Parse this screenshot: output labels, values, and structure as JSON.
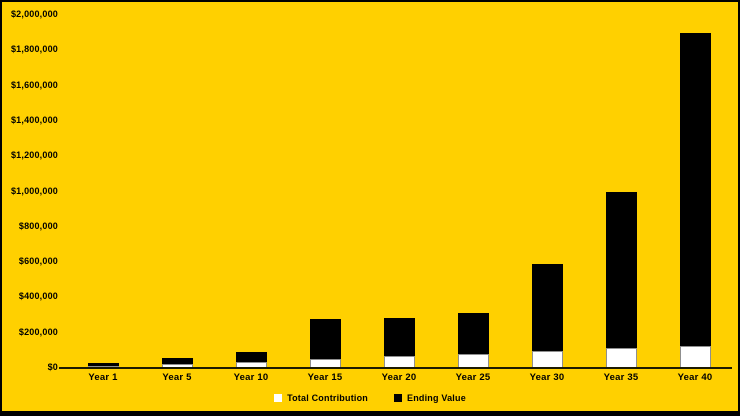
{
  "chart_data": {
    "type": "bar",
    "stacked": true,
    "title": "",
    "xlabel": "",
    "ylabel": "",
    "categories": [
      "Year 1",
      "Year 5",
      "Year 10",
      "Year 15",
      "Year 20",
      "Year 25",
      "Year 30",
      "Year 35",
      "Year 40"
    ],
    "series": [
      {
        "name": "Total Contribution",
        "color": "#FFFFFF",
        "values": [
          3000,
          15000,
          30000,
          45000,
          60000,
          75000,
          90000,
          105000,
          120000
        ]
      },
      {
        "name": "Ending Value",
        "color": "#000000",
        "values": [
          15000,
          35000,
          55000,
          225000,
          215000,
          230000,
          495000,
          885000,
          1775000
        ]
      }
    ],
    "ylim": [
      0,
      2000000
    ],
    "y_tick_step": 200000,
    "y_ticks": [
      "$0",
      "$200,000",
      "$400,000",
      "$600,000",
      "$800,000",
      "$1,000,000",
      "$1,200,000",
      "$1,400,000",
      "$1,600,000",
      "$1,800,000",
      "$2,000,000"
    ],
    "grid": false,
    "legend_position": "bottom"
  },
  "colors": {
    "background": "#FFD000",
    "axis_line": "#1C1A00",
    "text": "#000000",
    "frame": "#000000",
    "bar_contribution": "#FFFFFF",
    "bar_ending_value": "#000000"
  }
}
